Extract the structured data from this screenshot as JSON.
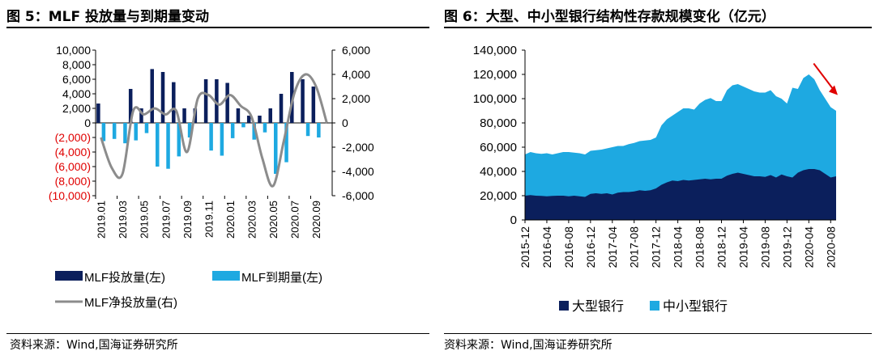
{
  "left": {
    "title": "图 5：MLF 投放量与到期量变动",
    "source": "资料来源：Wind,国海证券研究所",
    "chart_data": {
      "type": "bar",
      "categories": [
        "2019.01",
        "2019.02",
        "2019.03",
        "2019.04",
        "2019.05",
        "2019.06",
        "2019.07",
        "2019.08",
        "2019.09",
        "2019.10",
        "2019.11",
        "2019.12",
        "2020.01",
        "2020.02",
        "2020.03",
        "2020.04",
        "2020.05",
        "2020.06",
        "2020.07",
        "2020.08",
        "2020.09",
        "2020.10"
      ],
      "x_tick_labels": [
        "2019.01",
        "2019.03",
        "2019.05",
        "2019.07",
        "2019.09",
        "2019.11",
        "2020.01",
        "2020.03",
        "2020.05",
        "2020.07",
        "2020.09"
      ],
      "series": [
        {
          "name": "MLF投放量(左)",
          "axis": "left",
          "type": "bar",
          "color": "#0b1f5c",
          "values": [
            2665,
            0,
            0,
            4670,
            2000,
            7400,
            7000,
            5600,
            2000,
            2000,
            6000,
            6000,
            5500,
            2000,
            1000,
            1000,
            2000,
            4000,
            7000,
            6000,
            5000,
            0
          ]
        },
        {
          "name": "MLF到期量(左)",
          "axis": "left",
          "type": "bar",
          "color": "#1ea9e1",
          "values": [
            -2500,
            -2200,
            -2800,
            -2400,
            -1400,
            -6000,
            -6300,
            -4600,
            -2000,
            0,
            -3800,
            -4500,
            -2100,
            -600,
            -2300,
            -1300,
            -7000,
            -5400,
            0,
            -1800,
            -2000,
            0
          ]
        },
        {
          "name": "MLF净投放量(右)",
          "axis": "right",
          "type": "line",
          "color": "#8c8c8c",
          "values": [
            -1200,
            -3700,
            -4200,
            1000,
            700,
            1200,
            700,
            1000,
            -2400,
            2000,
            2300,
            1500,
            2300,
            1400,
            500,
            -2900,
            -5200,
            -1500,
            2500,
            4000,
            3000,
            0
          ]
        }
      ],
      "left_axis": {
        "min": -10000,
        "max": 10000,
        "ticks": [
          "10,000",
          "8,000",
          "6,000",
          "4,000",
          "2,000",
          "0",
          "(2,000)",
          "(4,000)",
          "(6,000)",
          "(8,000)",
          "(10,000)"
        ],
        "negative_color": "#e00000"
      },
      "right_axis": {
        "min": -6000,
        "max": 6000,
        "ticks": [
          "6,000",
          "4,000",
          "2,000",
          "0",
          "-2,000",
          "-4,000",
          "-6,000"
        ]
      },
      "legend": [
        "MLF投放量(左)",
        "MLF到期量(左)",
        "MLF净投放量(右)"
      ]
    }
  },
  "right": {
    "title": "图 6：大型、中小型银行结构性存款规模变化（亿元）",
    "source": "资料来源：Wind,国海证券研究所",
    "chart_data": {
      "type": "area",
      "x_tick_labels": [
        "2015-12",
        "2016-04",
        "2016-08",
        "2016-12",
        "2017-04",
        "2017-08",
        "2017-12",
        "2018-04",
        "2018-08",
        "2018-12",
        "2019-04",
        "2019-08",
        "2019-12",
        "2020-04",
        "2020-08"
      ],
      "x": [
        "2015-12",
        "2016-01",
        "2016-02",
        "2016-03",
        "2016-04",
        "2016-05",
        "2016-06",
        "2016-07",
        "2016-08",
        "2016-09",
        "2016-10",
        "2016-11",
        "2016-12",
        "2017-01",
        "2017-02",
        "2017-03",
        "2017-04",
        "2017-05",
        "2017-06",
        "2017-07",
        "2017-08",
        "2017-09",
        "2017-10",
        "2017-11",
        "2017-12",
        "2018-01",
        "2018-02",
        "2018-03",
        "2018-04",
        "2018-05",
        "2018-06",
        "2018-07",
        "2018-08",
        "2018-09",
        "2018-10",
        "2018-11",
        "2018-12",
        "2019-01",
        "2019-02",
        "2019-03",
        "2019-04",
        "2019-05",
        "2019-06",
        "2019-07",
        "2019-08",
        "2019-09",
        "2019-10",
        "2019-11",
        "2019-12",
        "2020-01",
        "2020-02",
        "2020-03",
        "2020-04",
        "2020-05",
        "2020-06",
        "2020-07",
        "2020-08",
        "2020-09"
      ],
      "series": [
        {
          "name": "大型银行",
          "color": "#0b1f5c",
          "values": [
            20000,
            20500,
            20000,
            19800,
            19500,
            19800,
            20000,
            20000,
            19500,
            20000,
            19500,
            19000,
            21500,
            22000,
            21500,
            22000,
            21000,
            22500,
            23000,
            23000,
            23500,
            24500,
            24000,
            24500,
            26000,
            29000,
            31000,
            32500,
            32000,
            33000,
            32500,
            33000,
            33500,
            34000,
            33500,
            34000,
            34000,
            36500,
            38000,
            39000,
            38000,
            37000,
            36000,
            36000,
            35500,
            37000,
            35000,
            37500,
            36000,
            35000,
            39000,
            41000,
            42000,
            42000,
            41000,
            38000,
            35000,
            36000
          ]
        },
        {
          "name": "中小型银行",
          "color": "#1ea9e1",
          "values": [
            54000,
            56000,
            55000,
            54500,
            55000,
            54000,
            55000,
            56000,
            56000,
            55500,
            55000,
            54000,
            57000,
            57500,
            58000,
            59000,
            60000,
            61000,
            61000,
            62500,
            63500,
            65000,
            65500,
            66000,
            68000,
            78000,
            83000,
            86000,
            89000,
            92000,
            92000,
            91000,
            96000,
            99000,
            100500,
            98000,
            98000,
            107000,
            111000,
            112000,
            110000,
            108000,
            106000,
            105000,
            105000,
            107000,
            102000,
            100000,
            96000,
            109000,
            108000,
            117000,
            120000,
            116000,
            107000,
            100000,
            93000,
            90000
          ]
        }
      ],
      "y_axis": {
        "min": 0,
        "max": 140000,
        "ticks": [
          "140,000",
          "120,000",
          "100,000",
          "80,000",
          "60,000",
          "40,000",
          "20,000",
          "0"
        ]
      },
      "legend": [
        "大型银行",
        "中小型银行"
      ],
      "annotation": "red-arrow-down"
    }
  }
}
